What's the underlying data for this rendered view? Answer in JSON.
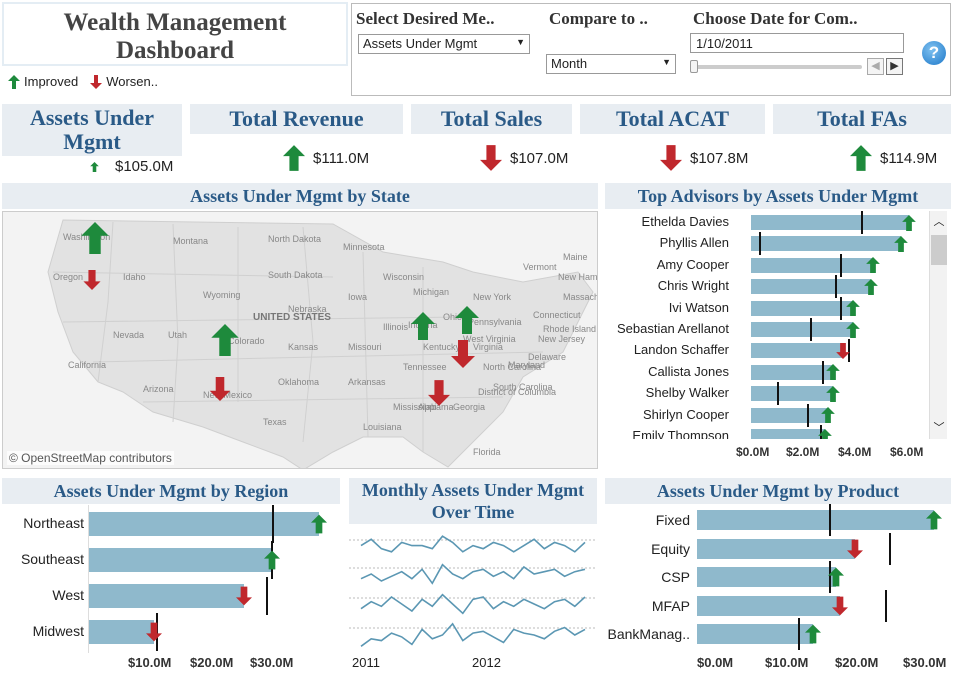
{
  "title": "Wealth Management Dashboard",
  "legend": {
    "improved": "Improved",
    "worsened": "Worsen.."
  },
  "controls": {
    "measure_label": "Select Desired Me..",
    "measure_value": "Assets Under Mgmt",
    "compare_label": "Compare to ..",
    "compare_value": "Month",
    "date_label": "Choose Date for Com..",
    "date_value": "1/10/2011",
    "help": "?"
  },
  "colors": {
    "up": "#1e8a3c",
    "down": "#c0282d",
    "bar": "#8fb9cc",
    "header_text": "#2a5a87"
  },
  "kpis": [
    {
      "label": "Assets Under Mgmt",
      "value": "$105.0M",
      "trend": "up"
    },
    {
      "label": "Total Revenue",
      "value": "$111.0M",
      "trend": "up"
    },
    {
      "label": "Total Sales",
      "value": "$107.0M",
      "trend": "down"
    },
    {
      "label": "Total ACAT",
      "value": "$107.8M",
      "trend": "down"
    },
    {
      "label": "Total FAs",
      "value": "$114.9M",
      "trend": "up"
    }
  ],
  "map": {
    "title": "Assets Under Mgmt by State",
    "attribution": "© OpenStreetMap contributors",
    "country_label": "UNITED STATES",
    "labels": [
      "Montana",
      "North Dakota",
      "Minnesota",
      "Wisconsin",
      "South Dakota",
      "Wyoming",
      "Nebraska",
      "Iowa",
      "Nevada",
      "Utah",
      "Colorado",
      "Kansas",
      "Missouri",
      "Illinois",
      "Indiana",
      "Ohio",
      "California",
      "Arizona",
      "New Mexico",
      "Oklahoma",
      "Arkansas",
      "Texas",
      "Louisiana",
      "Mississippi",
      "Alabama",
      "Georgia",
      "Tennessee",
      "Kentucky",
      "Virginia",
      "North Carolina",
      "South Carolina",
      "Florida",
      "New York",
      "Pennsylvania",
      "Maine",
      "Vermont",
      "New Hampshire",
      "Massachusetts",
      "Rhode Island",
      "Connecticut",
      "New Jersey",
      "Delaware",
      "Maryland",
      "District of Columbia",
      "Oregon",
      "Washington",
      "Idaho",
      "Michigan",
      "West Virginia"
    ],
    "markers": [
      {
        "state": "Washington",
        "trend": "up"
      },
      {
        "state": "Oregon",
        "trend": "down"
      },
      {
        "state": "Colorado",
        "trend": "up"
      },
      {
        "state": "New Mexico",
        "trend": "down"
      },
      {
        "state": "Indiana",
        "trend": "up"
      },
      {
        "state": "Pennsylvania",
        "trend": "up"
      },
      {
        "state": "Virginia",
        "trend": "down"
      },
      {
        "state": "South Carolina",
        "trend": "down"
      }
    ]
  },
  "chart_data": [
    {
      "type": "bar",
      "title": "Top Advisors by Assets Under Mgmt",
      "categories": [
        "Ethelda Davies",
        "Phyllis Allen",
        "Amy Cooper",
        "Chris Wright",
        "Ivi Watson",
        "Sebastian Arellanot",
        "Landon Schaffer",
        "Callista Jones",
        "Shelby Walker",
        "Shirlyn Cooper",
        "Emily Thompson"
      ],
      "values": [
        6.2,
        5.9,
        4.8,
        4.7,
        4.0,
        4.0,
        3.6,
        3.2,
        3.2,
        3.0,
        2.9
      ],
      "reference": [
        4.3,
        0.3,
        3.5,
        3.3,
        3.5,
        2.3,
        3.8,
        2.8,
        1.0,
        2.2,
        2.7
      ],
      "trend": [
        "up",
        "up",
        "up",
        "up",
        "up",
        "up",
        "down",
        "up",
        "up",
        "up",
        "up"
      ],
      "xticks": [
        "$0.0M",
        "$2.0M",
        "$4.0M",
        "$6.0M"
      ],
      "xlim": [
        0,
        6.9
      ]
    },
    {
      "type": "bar",
      "title": "Assets Under Mgmt by Region",
      "categories": [
        "Northeast",
        "Southeast",
        "West",
        "Midwest"
      ],
      "values": [
        37,
        29.5,
        25,
        10.5
      ],
      "reference": [
        29.5,
        29.3,
        28.5,
        10.8
      ],
      "trend": [
        "up",
        "up",
        "down",
        "down"
      ],
      "xticks": [
        "$10.0M",
        "$20.0M",
        "$30.0M"
      ],
      "xlim": [
        0,
        40
      ]
    },
    {
      "type": "line",
      "title": "Monthly Assets Under Mgmt Over Time",
      "xticks": [
        "2011",
        "2012"
      ],
      "series": [
        {
          "values": [
            62,
            64,
            61,
            60,
            63,
            62,
            62,
            61,
            65,
            63,
            60,
            62,
            61,
            63,
            62,
            60,
            62,
            64,
            61,
            63,
            62,
            60,
            63
          ]
        },
        {
          "values": [
            40,
            42,
            39,
            41,
            43,
            40,
            44,
            38,
            46,
            42,
            40,
            43,
            44,
            41,
            43,
            40,
            45,
            42,
            43,
            44,
            41,
            43,
            44
          ]
        },
        {
          "values": [
            20,
            23,
            21,
            25,
            22,
            19,
            24,
            21,
            26,
            22,
            18,
            24,
            25,
            20,
            23,
            21,
            24,
            22,
            20,
            23,
            24,
            21,
            25
          ]
        },
        {
          "values": [
            2,
            6,
            5,
            9,
            7,
            3,
            11,
            6,
            8,
            14,
            5,
            9,
            10,
            7,
            4,
            11,
            9,
            8,
            6,
            10,
            12,
            8,
            11
          ]
        }
      ]
    },
    {
      "type": "bar",
      "title": "Assets Under Mgmt by Product",
      "categories": [
        "Fixed",
        "Equity",
        "CSP",
        "MFAP",
        "BankManag.."
      ],
      "values": [
        31.5,
        21.0,
        18.5,
        19.0,
        15.5
      ],
      "reference": [
        17.5,
        25.5,
        17.5,
        25.0,
        13.5
      ],
      "trend": [
        "up",
        "down",
        "up",
        "down",
        "up"
      ],
      "xticks": [
        "$0.0M",
        "$10.0M",
        "$20.0M",
        "$30.0M"
      ],
      "xlim": [
        0,
        33
      ]
    }
  ]
}
